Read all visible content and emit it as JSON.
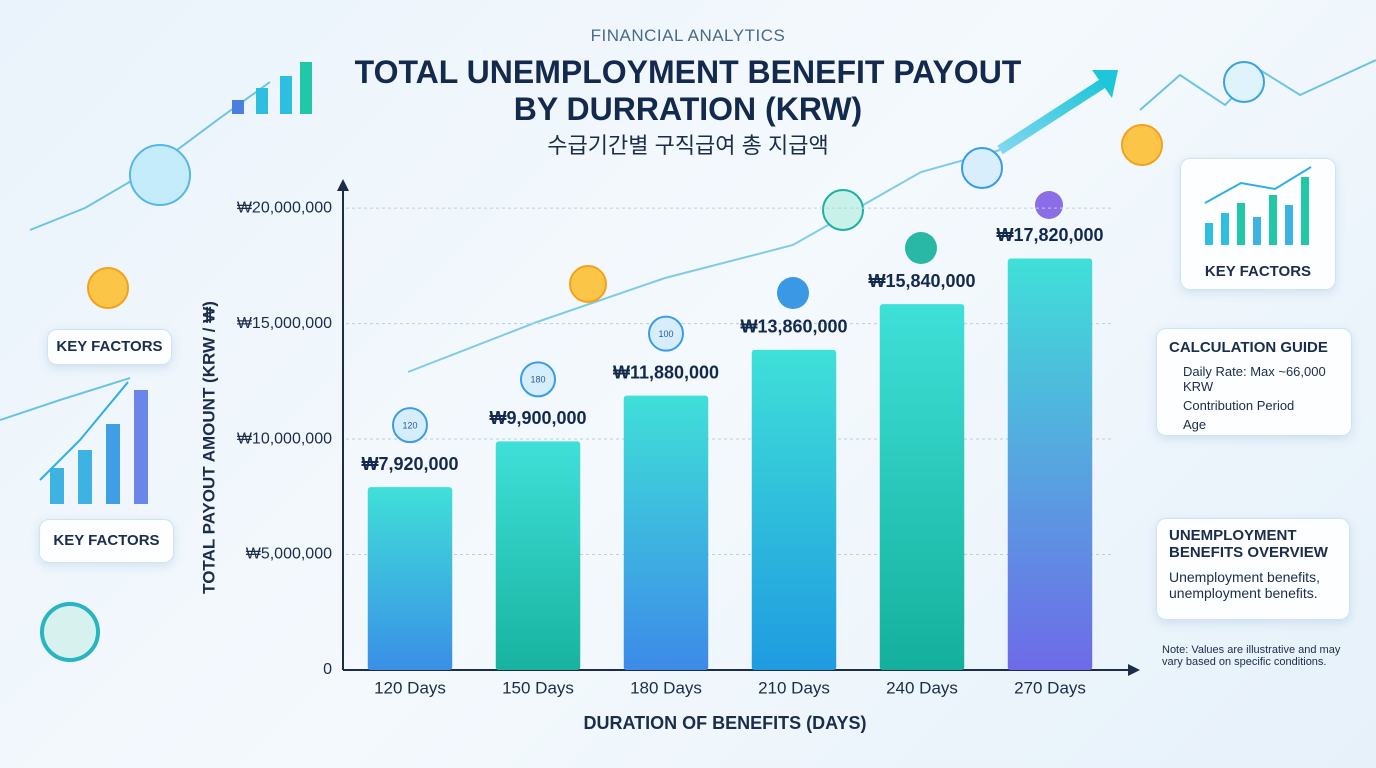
{
  "chart_data": {
    "type": "bar",
    "kicker": "FINANCIAL ANALYTICS",
    "title": "TOTAL UNEMPLOYMENT BENEFIT PAYOUT BY DURRATION (KRW)",
    "subtitle": "수급기간별 구직급여 총 지급액",
    "y_label": "TOTAL PAYOUT AMOUNT (KRW / ₩)",
    "x_label": "DURATION OF BENEFITS (DAYS)",
    "categories": [
      "120 Days",
      "150 Days",
      "180 Days",
      "210 Days",
      "240 Days",
      "270 Days"
    ],
    "values": [
      7920000,
      9900000,
      11880000,
      13860000,
      15840000,
      17820000
    ],
    "value_labels": [
      "₩7,920,000",
      "₩9,900,000",
      "₩11,880,000",
      "₩13,860,000",
      "₩15,840,000",
      "₩17,820,000"
    ],
    "colors": [
      "#3a8fe6",
      "#18b3a0",
      "#3d8ae8",
      "#1f9be0",
      "#14b09c",
      "#6e6ae8"
    ],
    "icon_labels": [
      "120",
      "180",
      "100"
    ],
    "ylim": [
      0,
      21000000
    ],
    "yticks": [
      0,
      {
        "value": 5000000,
        "label": "₩5,000,000"
      },
      {
        "value": 10000000,
        "label": "₩10,000,000"
      },
      {
        "value": 15000000,
        "label": "₩15,000,000"
      },
      {
        "value": 20000000,
        "label": "₩20,000,000"
      }
    ],
    "grid": true
  },
  "left_panels": [
    "KEY FACTORS",
    "KEY FACTORS"
  ],
  "right_panels": {
    "key_factors": "KEY FACTORS",
    "guide": {
      "title": "CALCULATION GUIDE",
      "items": [
        "Daily Rate: Max ~66,000 KRW",
        "Contribution Period",
        "Age"
      ]
    },
    "overview": {
      "title": "UNEMPLOYMENT BENEFITS OVERVIEW",
      "text": "Unemployment benefits, unemployment benefits."
    },
    "note": "Note: Values are illustrative and may vary based on specific conditions."
  }
}
